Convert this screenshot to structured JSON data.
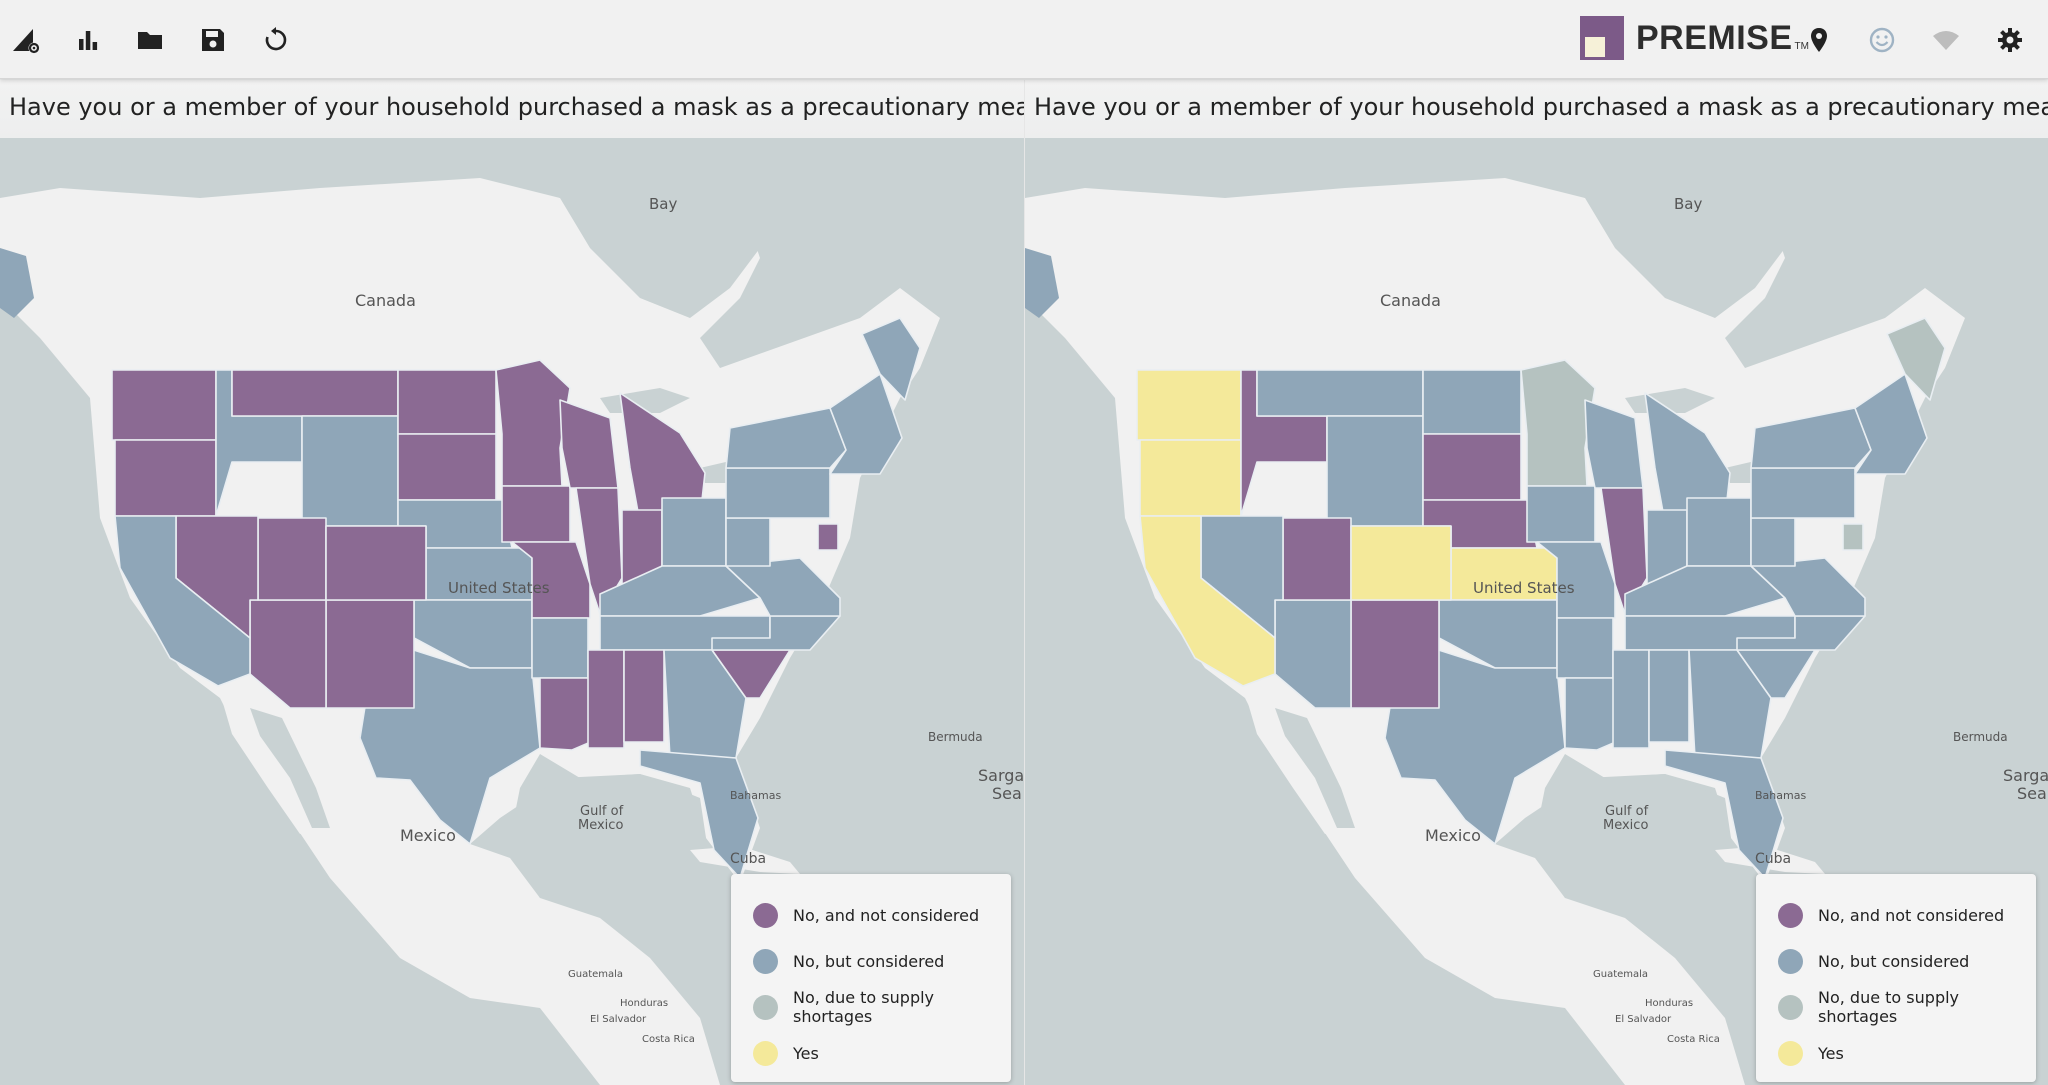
{
  "toolbar": {
    "icons": [
      "chart-settings-icon",
      "bar-chart-icon",
      "folder-icon",
      "save-icon",
      "refresh-icon"
    ],
    "brand_name": "PREMISE",
    "brand_tm": "TM",
    "right_icons": [
      "location-pin-icon",
      "smiley-icon",
      "wifi-icon",
      "gear-icon"
    ]
  },
  "colors": {
    "no_not_considered": "#8b6a93",
    "no_but_considered": "#8fa6b8",
    "no_supply_shortages": "#b5c2c0",
    "yes": "#f4e99a",
    "land": "#f1f1f1",
    "water": "#c9d2d3"
  },
  "legend": [
    {
      "label": "No, and not considered",
      "color": "#8b6a93"
    },
    {
      "label": "No, but considered",
      "color": "#8fa6b8"
    },
    {
      "label": "No, due to supply shortages",
      "color": "#b5c2c0"
    },
    {
      "label": "Yes",
      "color": "#f4e99a"
    }
  ],
  "place_labels": {
    "canada": "Canada",
    "united_states": "United States",
    "mexico": "Mexico",
    "gulf_of_mexico_1": "Gulf of",
    "gulf_of_mexico_2": "Mexico",
    "cuba": "Cuba",
    "sargasso_1": "Sarga",
    "sargasso_2": "Sea",
    "bay": "Bay",
    "bermuda": "Bermuda",
    "bahamas": "Bahamas",
    "honduras": "Honduras",
    "guatemala": "Guatemala",
    "costa_rica": "Costa Rica",
    "el_salvador": "El Salvador"
  },
  "panels": [
    {
      "title": "Have you or a member of your household purchased a mask as a precautionary measure …",
      "region_colors": {
        "wa": "#8b6a93",
        "or": "#8b6a93",
        "id": "#8fa6b8",
        "mt": "#8b6a93",
        "nd": "#8b6a93",
        "sd": "#8b6a93",
        "wy": "#8fa6b8",
        "ne": "#8fa6b8",
        "ks": "#8fa6b8",
        "ok": "#8fa6b8",
        "tx": "#8fa6b8",
        "nm": "#8b6a93",
        "az": "#8b6a93",
        "ut": "#8b6a93",
        "co": "#8b6a93",
        "nv": "#8b6a93",
        "ca": "#8fa6b8",
        "mn": "#8b6a93",
        "ia": "#8b6a93",
        "mo": "#8b6a93",
        "ar": "#8fa6b8",
        "la": "#8b6a93",
        "wi": "#8b6a93",
        "il": "#8b6a93",
        "mi": "#8b6a93",
        "in": "#8b6a93",
        "oh": "#8fa6b8",
        "ky": "#8fa6b8",
        "tn": "#8fa6b8",
        "ms": "#8b6a93",
        "al": "#8b6a93",
        "ga": "#8fa6b8",
        "fl": "#8fa6b8",
        "sc": "#8b6a93",
        "nc": "#8fa6b8",
        "va": "#8fa6b8",
        "wv": "#8fa6b8",
        "pa": "#8fa6b8",
        "ny": "#8fa6b8",
        "ne_states": "#8fa6b8",
        "me": "#8fa6b8",
        "nj": "#8b6a93"
      }
    },
    {
      "title": "Have you or a member of your household purchased a mask as a precautionary measure …",
      "region_colors": {
        "wa": "#f4e99a",
        "or": "#f4e99a",
        "id": "#8b6a93",
        "mt": "#8fa6b8",
        "nd": "#8fa6b8",
        "sd": "#8b6a93",
        "wy": "#8fa6b8",
        "ne": "#8b6a93",
        "ks": "#f4e99a",
        "ok": "#8fa6b8",
        "tx": "#8fa6b8",
        "nm": "#8b6a93",
        "az": "#8fa6b8",
        "ut": "#8b6a93",
        "co": "#f4e99a",
        "nv": "#8fa6b8",
        "ca": "#f4e99a",
        "mn": "#b5c2c0",
        "ia": "#8fa6b8",
        "mo": "#8fa6b8",
        "ar": "#8fa6b8",
        "la": "#8fa6b8",
        "wi": "#8fa6b8",
        "il": "#8b6a93",
        "mi": "#8fa6b8",
        "in": "#8fa6b8",
        "oh": "#8fa6b8",
        "ky": "#8fa6b8",
        "tn": "#8fa6b8",
        "ms": "#8fa6b8",
        "al": "#8fa6b8",
        "ga": "#8fa6b8",
        "fl": "#8fa6b8",
        "sc": "#8fa6b8",
        "nc": "#8fa6b8",
        "va": "#8fa6b8",
        "wv": "#8fa6b8",
        "pa": "#8fa6b8",
        "ny": "#8fa6b8",
        "ne_states": "#8fa6b8",
        "me": "#b5c2c0",
        "nj": "#b5c2c0"
      }
    }
  ]
}
